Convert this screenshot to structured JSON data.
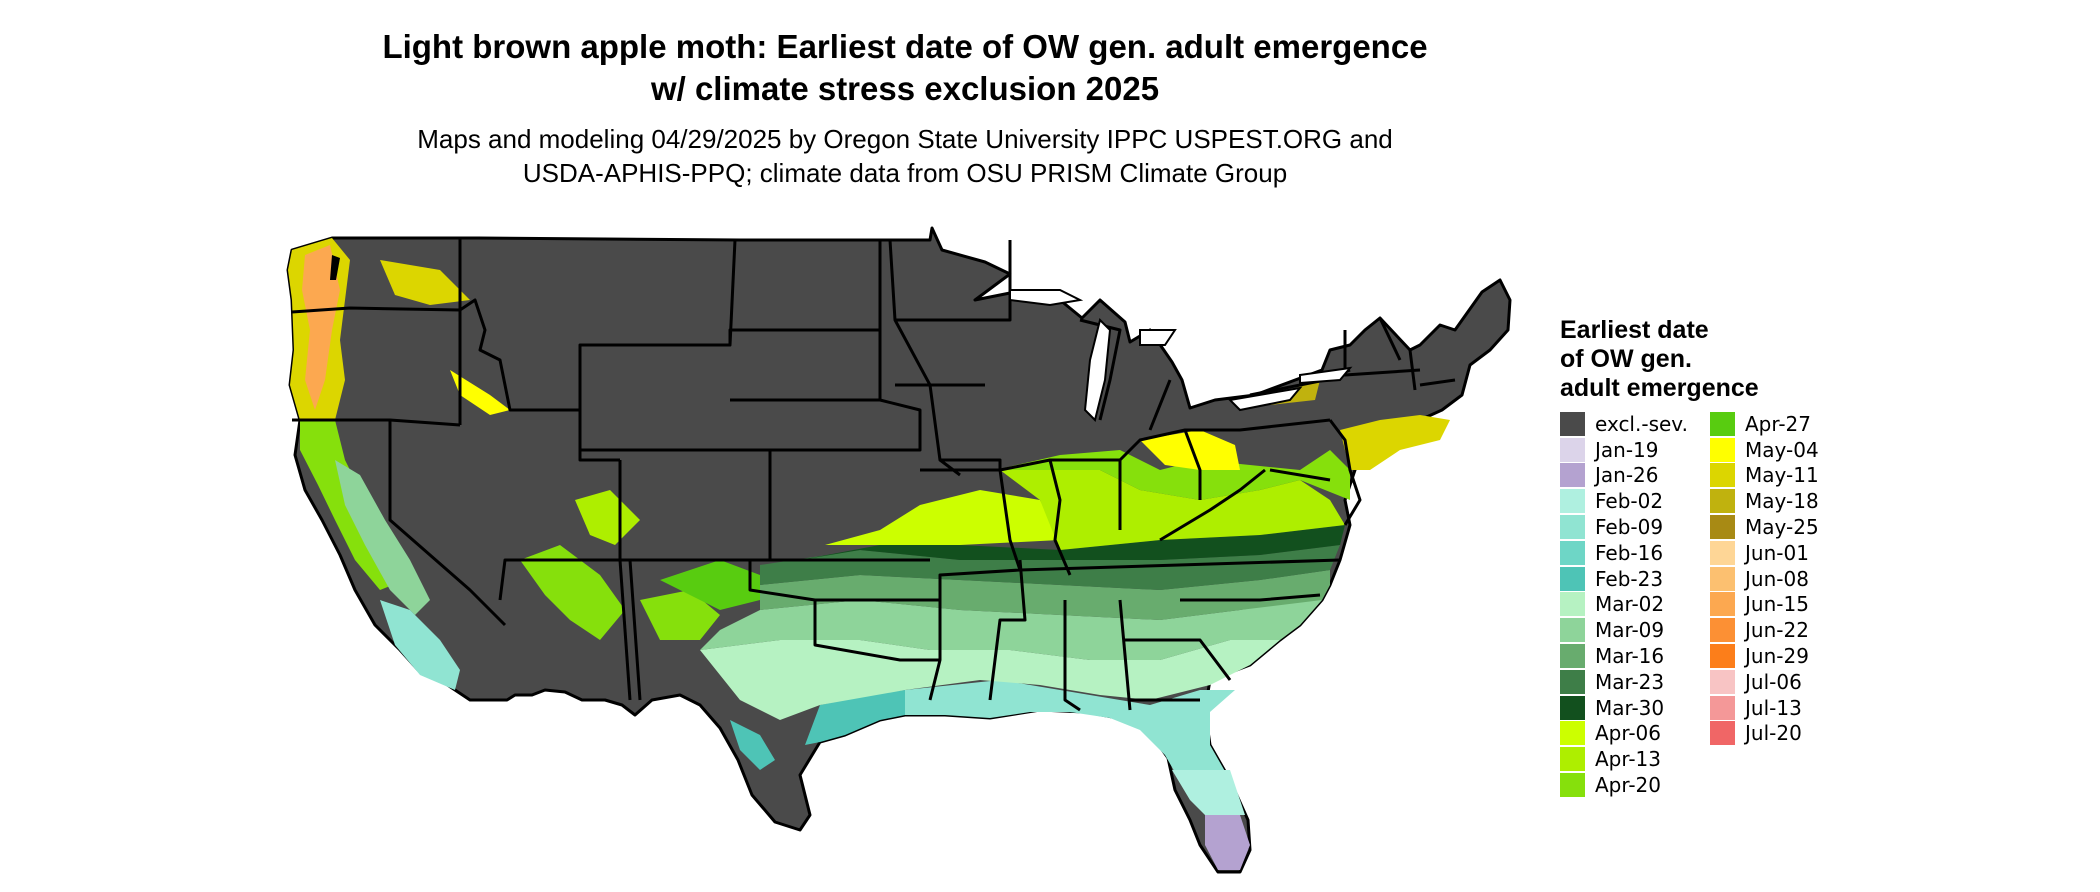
{
  "title_line1": "Light brown apple moth: Earliest date of OW gen. adult emergence",
  "title_line2": "w/ climate stress exclusion 2025",
  "subtitle_line1": "Maps and modeling 04/29/2025 by Oregon State University IPPC USPEST.ORG and",
  "subtitle_line2": "USDA-APHIS-PPQ; climate data from OSU PRISM Climate Group",
  "legend": {
    "title_line1": "Earliest date",
    "title_line2": "of OW gen.",
    "title_line3": "adult emergence",
    "columns": [
      [
        {
          "label": "excl.-sev.",
          "color": "#4a4a4a"
        },
        {
          "label": "Jan-19",
          "color": "#dcd4ea"
        },
        {
          "label": "Jan-26",
          "color": "#b4a2d0"
        },
        {
          "label": "Feb-02",
          "color": "#aff0e0"
        },
        {
          "label": "Feb-09",
          "color": "#90e4d2"
        },
        {
          "label": "Feb-16",
          "color": "#6ed6c6"
        },
        {
          "label": "Feb-23",
          "color": "#4ec4b6"
        },
        {
          "label": "Mar-02",
          "color": "#b6f2c2"
        },
        {
          "label": "Mar-09",
          "color": "#8ed49a"
        },
        {
          "label": "Mar-16",
          "color": "#68ac6e"
        },
        {
          "label": "Mar-23",
          "color": "#3e7e48"
        },
        {
          "label": "Mar-30",
          "color": "#12501e"
        },
        {
          "label": "Apr-06",
          "color": "#ccff00"
        },
        {
          "label": "Apr-13",
          "color": "#aeee00"
        },
        {
          "label": "Apr-20",
          "color": "#86e00c"
        }
      ],
      [
        {
          "label": "Apr-27",
          "color": "#58cc10"
        },
        {
          "label": "May-04",
          "color": "#ffff00"
        },
        {
          "label": "May-11",
          "color": "#dcd600"
        },
        {
          "label": "May-18",
          "color": "#c0b20e"
        },
        {
          "label": "May-25",
          "color": "#a88a14"
        },
        {
          "label": "Jun-01",
          "color": "#fed696"
        },
        {
          "label": "Jun-08",
          "color": "#fcc070"
        },
        {
          "label": "Jun-15",
          "color": "#fca850"
        },
        {
          "label": "Jun-22",
          "color": "#fc9034"
        },
        {
          "label": "Jun-29",
          "color": "#fc7e1a"
        },
        {
          "label": "Jul-06",
          "color": "#f8c4c4"
        },
        {
          "label": "Jul-13",
          "color": "#f49898"
        },
        {
          "label": "Jul-20",
          "color": "#f06666"
        }
      ]
    ]
  }
}
